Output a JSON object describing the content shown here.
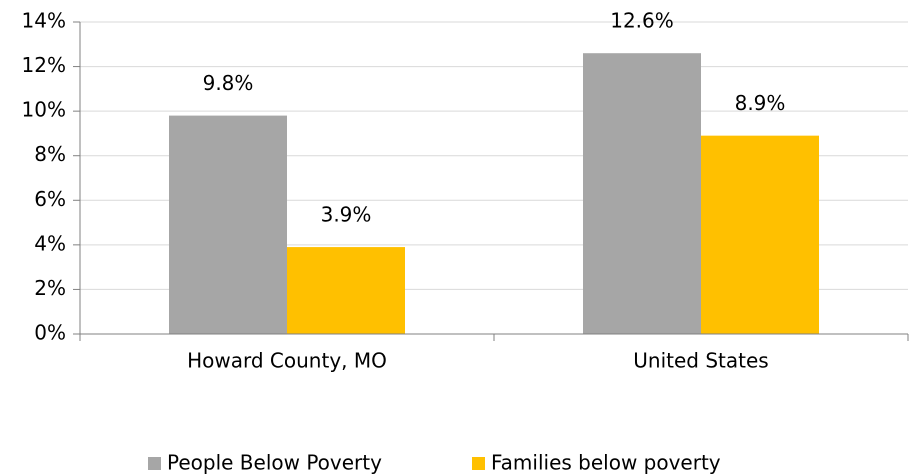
{
  "chart_data": {
    "type": "bar",
    "categories": [
      "Howard County, MO",
      "United States"
    ],
    "series": [
      {
        "name": "People Below Poverty",
        "color": "#a6a6a6",
        "values": [
          9.8,
          12.6
        ],
        "value_labels": [
          "9.8%",
          "12.6%"
        ]
      },
      {
        "name": "Families below poverty",
        "color": "#ffc000",
        "values": [
          3.9,
          8.9
        ],
        "value_labels": [
          "3.9%",
          "8.9%"
        ]
      }
    ],
    "ylim": [
      0,
      14
    ],
    "yticks": [
      {
        "value": 0,
        "label": "0%"
      },
      {
        "value": 2,
        "label": "2%"
      },
      {
        "value": 4,
        "label": "4%"
      },
      {
        "value": 6,
        "label": "6%"
      },
      {
        "value": 8,
        "label": "8%"
      },
      {
        "value": 10,
        "label": "10%"
      },
      {
        "value": 12,
        "label": "12%"
      },
      {
        "value": 14,
        "label": "14%"
      }
    ],
    "grid": true,
    "legend": "bottom"
  }
}
